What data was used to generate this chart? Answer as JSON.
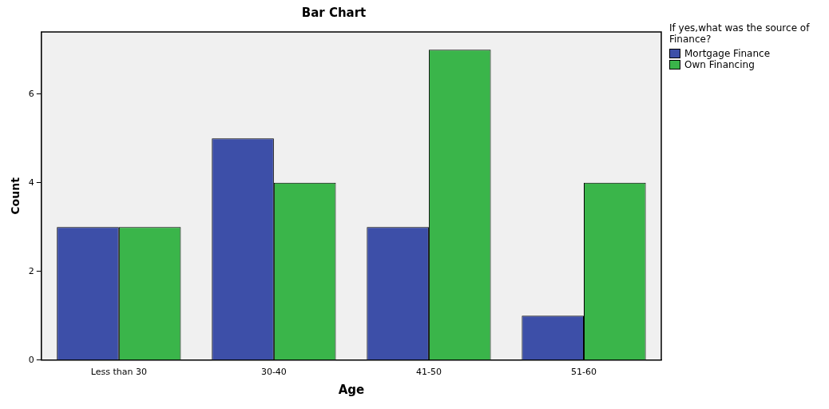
{
  "chart_data": {
    "type": "bar",
    "title": "Bar Chart",
    "xlabel": "Age",
    "ylabel": "Count",
    "legend_title": "If yes,what was the source of Finance?",
    "categories": [
      "Less than 30",
      "30-40",
      "41-50",
      "51-60"
    ],
    "series": [
      {
        "name": "Mortgage Finance",
        "color": "#3d4fa8",
        "values": [
          3,
          5,
          3,
          1
        ]
      },
      {
        "name": "Own Financing",
        "color": "#3ab54a",
        "values": [
          3,
          4,
          7,
          4
        ]
      }
    ],
    "ylim": [
      0,
      7.4
    ],
    "yticks": [
      0,
      2,
      4,
      6
    ],
    "grid": false,
    "legend": "top right"
  }
}
